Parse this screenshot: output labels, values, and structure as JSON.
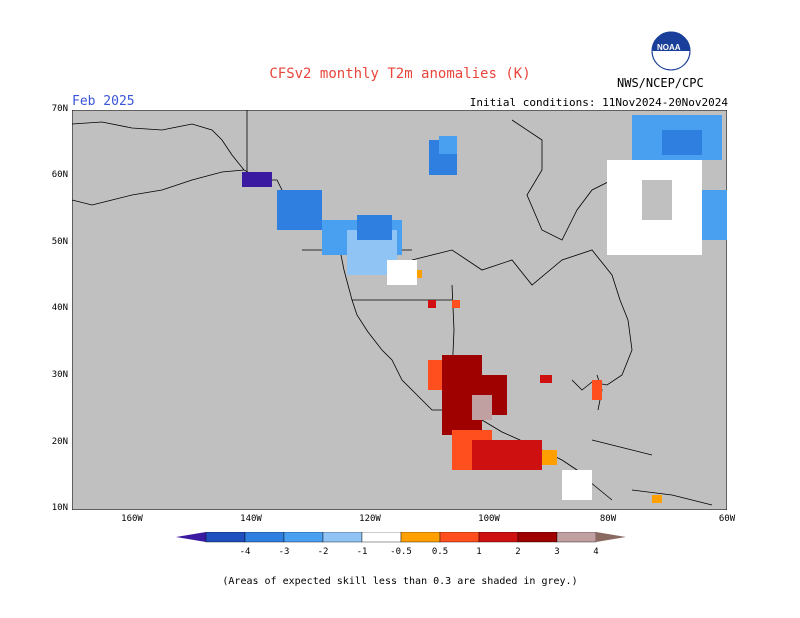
{
  "header": {
    "title": "CFSv2 monthly T2m anomalies (K)",
    "month": "Feb 2025",
    "initial_conditions": "Initial conditions: 11Nov2024-20Nov2024",
    "org": "NWS/NCEP/CPC",
    "logo_text": "NOAA"
  },
  "map": {
    "background": "#c0c0c0",
    "lat_labels": [
      "70N",
      "60N",
      "50N",
      "40N",
      "30N",
      "20N",
      "10N"
    ],
    "lon_labels": [
      "160W",
      "140W",
      "120W",
      "100W",
      "80W",
      "60W"
    ],
    "lat_range": [
      10,
      70
    ],
    "lon_range": [
      -170,
      -60
    ]
  },
  "colorbar": {
    "labels": [
      "-4",
      "-3",
      "-2",
      "-1",
      "-0.5",
      "0.5",
      "1",
      "2",
      "3",
      "4"
    ],
    "colors": [
      "#3a1aa0",
      "#1f4fbf",
      "#2f7fe0",
      "#4aa0f0",
      "#8fc4f5",
      "#ffffff",
      "#ffa000",
      "#ff4f1f",
      "#cf1010",
      "#9f0000",
      "#c0a0a0",
      "#8a6a60"
    ]
  },
  "footnote": "(Areas of expected skill less than 0.3 are shaded in grey.)"
}
